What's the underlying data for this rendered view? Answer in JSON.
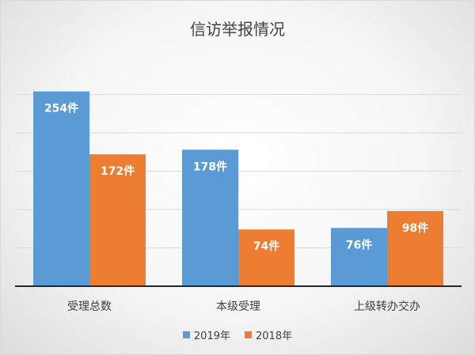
{
  "chart_data": {
    "type": "bar",
    "title": "信访举报情况",
    "categories": [
      "受理总数",
      "本级受理",
      "上级转办交办"
    ],
    "series": [
      {
        "name": "2019年",
        "color": "#5b9bd5",
        "values": [
          254,
          178,
          76
        ],
        "labels": [
          "254件",
          "178件",
          "76件"
        ]
      },
      {
        "name": "2018年",
        "color": "#ed7d31",
        "values": [
          172,
          74,
          98
        ],
        "labels": [
          "172件",
          "74件",
          "98件"
        ]
      }
    ],
    "ylim": [
      0,
      300
    ],
    "y_axis_labels_shown": false,
    "grid": true,
    "legend_position": "bottom"
  }
}
